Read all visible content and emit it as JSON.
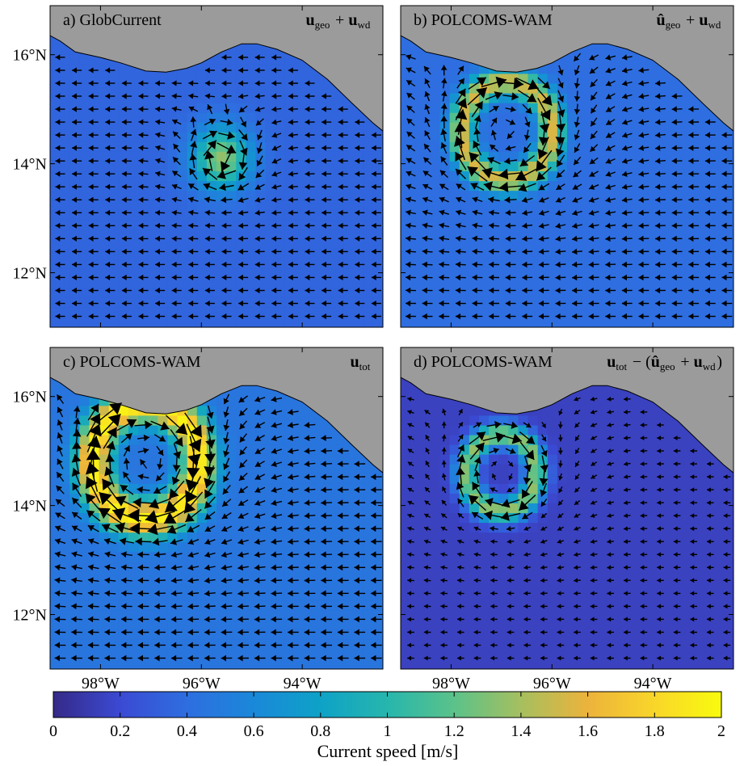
{
  "chart_data": {
    "type": "heatmap",
    "colormap": "parula",
    "panels": [
      {
        "id": "a",
        "letter": "a)",
        "title": "GlobCurrent",
        "formula_main": "u",
        "formula_sub": "geo",
        "formula_rest": " + ",
        "formula_main2": "u",
        "formula_sub2": "wd",
        "eddies": [
          {
            "lon": -95.6,
            "lat": 14.1,
            "radius_deg": 0.0,
            "peak": 1.35,
            "spread_deg": 0.55,
            "rotation": "anticyclonic"
          }
        ],
        "base_speed": 0.35
      },
      {
        "id": "b",
        "letter": "b)",
        "title": "POLCOMS-WAM",
        "formula_main": "û",
        "formula_sub": "geo",
        "formula_rest": " + ",
        "formula_main2": "u",
        "formula_sub2": "wd",
        "eddies": [
          {
            "lon": -96.9,
            "lat": 14.6,
            "radius_deg": 0.9,
            "peak": 1.55,
            "spread_deg": 0.25,
            "rotation": "anticyclonic"
          }
        ],
        "base_speed": 0.4
      },
      {
        "id": "c",
        "letter": "c)",
        "title": "POLCOMS-WAM",
        "formula_main": "u",
        "formula_sub": "tot",
        "formula_rest": "",
        "formula_main2": "",
        "formula_sub2": "",
        "eddies": [
          {
            "lon": -97.1,
            "lat": 14.8,
            "radius_deg": 1.05,
            "peak": 1.95,
            "spread_deg": 0.35,
            "rotation": "anticyclonic"
          }
        ],
        "base_speed": 0.45
      },
      {
        "id": "d",
        "letter": "d)",
        "title": "POLCOMS-WAM",
        "formula_main": "u",
        "formula_sub": "tot",
        "formula_rest": " − (",
        "formula_main2": "û",
        "formula_sub2": "geo",
        "formula_tail": " + ",
        "formula_main3": "u",
        "formula_sub3": "wd",
        "formula_close": ")",
        "eddies": [
          {
            "lon": -97.0,
            "lat": 14.6,
            "radius_deg": 0.7,
            "peak": 1.35,
            "spread_deg": 0.22,
            "rotation": "anticyclonic"
          }
        ],
        "base_speed": 0.15
      }
    ],
    "y_ticks": [
      {
        "value": 16,
        "label": "16°N"
      },
      {
        "value": 14,
        "label": "14°N"
      },
      {
        "value": 12,
        "label": "12°N"
      }
    ],
    "x_ticks": [
      {
        "value": -98,
        "label": "98°W"
      },
      {
        "value": -96,
        "label": "96°W"
      },
      {
        "value": -94,
        "label": "94°W"
      }
    ],
    "xlim": [
      -99.0,
      -92.4
    ],
    "ylim": [
      11.0,
      16.9
    ],
    "colorbar": {
      "min": 0,
      "max": 2,
      "ticks": [
        {
          "value": 0,
          "label": "0"
        },
        {
          "value": 0.2,
          "label": "0.2"
        },
        {
          "value": 0.4,
          "label": "0.4"
        },
        {
          "value": 0.6,
          "label": "0.6"
        },
        {
          "value": 0.8,
          "label": "0.8"
        },
        {
          "value": 1,
          "label": "1"
        },
        {
          "value": 1.2,
          "label": "1.2"
        },
        {
          "value": 1.4,
          "label": "1.4"
        },
        {
          "value": 1.6,
          "label": "1.6"
        },
        {
          "value": 1.8,
          "label": "1.8"
        },
        {
          "value": 2,
          "label": "2"
        }
      ],
      "label": "Current speed [m/s]"
    },
    "colors": {
      "land": "#9b9b9b",
      "frame": "#000000"
    }
  }
}
